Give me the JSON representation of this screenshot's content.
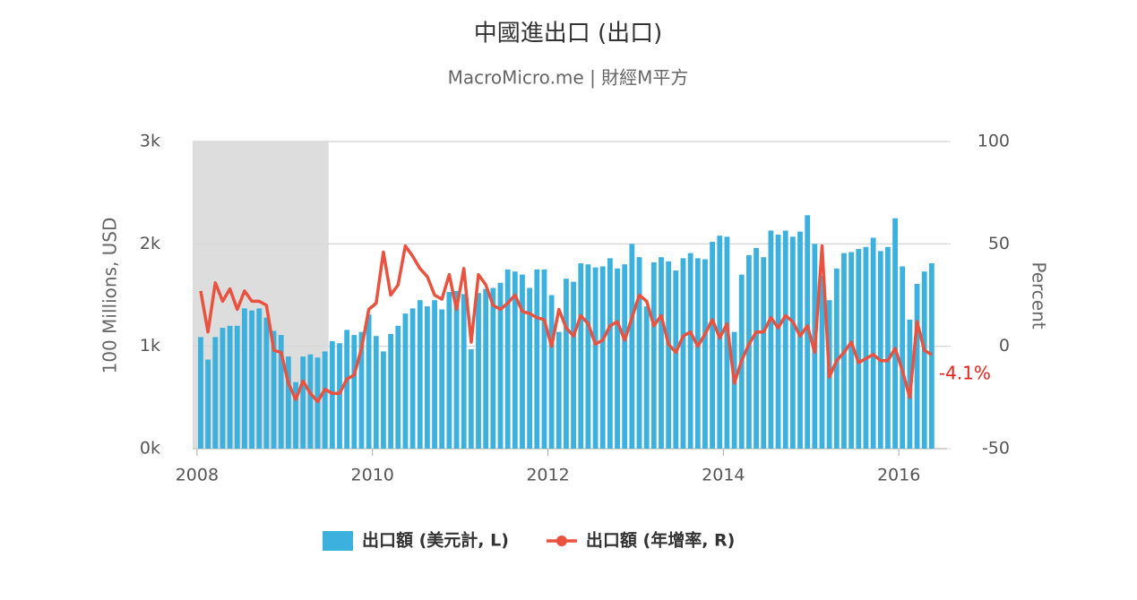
{
  "chart_data": {
    "type": "bar-line",
    "title": "中國進出口 (出口)",
    "subtitle": "MacroMicro.me | 財經M平方",
    "ylabel": "100 Millions, USD",
    "y2label": "Percent",
    "x": [
      "2008-01",
      "2008-02",
      "2008-03",
      "2008-04",
      "2008-05",
      "2008-06",
      "2008-07",
      "2008-08",
      "2008-09",
      "2008-10",
      "2008-11",
      "2008-12",
      "2009-01",
      "2009-02",
      "2009-03",
      "2009-04",
      "2009-05",
      "2009-06",
      "2009-07",
      "2009-08",
      "2009-09",
      "2009-10",
      "2009-11",
      "2009-12",
      "2010-01",
      "2010-02",
      "2010-03",
      "2010-04",
      "2010-05",
      "2010-06",
      "2010-07",
      "2010-08",
      "2010-09",
      "2010-10",
      "2010-11",
      "2010-12",
      "2011-01",
      "2011-02",
      "2011-03",
      "2011-04",
      "2011-05",
      "2011-06",
      "2011-07",
      "2011-08",
      "2011-09",
      "2011-10",
      "2011-11",
      "2011-12",
      "2012-01",
      "2012-02",
      "2012-03",
      "2012-04",
      "2012-05",
      "2012-06",
      "2012-07",
      "2012-08",
      "2012-09",
      "2012-10",
      "2012-11",
      "2012-12",
      "2013-01",
      "2013-02",
      "2013-03",
      "2013-04",
      "2013-05",
      "2013-06",
      "2013-07",
      "2013-08",
      "2013-09",
      "2013-10",
      "2013-11",
      "2013-12",
      "2014-01",
      "2014-02",
      "2014-03",
      "2014-04",
      "2014-05",
      "2014-06",
      "2014-07",
      "2014-08",
      "2014-09",
      "2014-10",
      "2014-11",
      "2014-12",
      "2015-01",
      "2015-02",
      "2015-03",
      "2015-04",
      "2015-05",
      "2015-06",
      "2015-07",
      "2015-08",
      "2015-09",
      "2015-10",
      "2015-11",
      "2015-12",
      "2016-01",
      "2016-02",
      "2016-03",
      "2016-04",
      "2016-05"
    ],
    "series": [
      {
        "name": "出口額 (美元計, L)",
        "color": "#3db1dd",
        "values": [
          1090,
          870,
          1090,
          1180,
          1200,
          1200,
          1370,
          1350,
          1370,
          1280,
          1150,
          1110,
          900,
          650,
          900,
          920,
          890,
          950,
          1050,
          1030,
          1160,
          1110,
          1140,
          1310,
          1100,
          950,
          1120,
          1200,
          1320,
          1370,
          1450,
          1390,
          1450,
          1360,
          1530,
          1540,
          1510,
          970,
          1520,
          1560,
          1570,
          1620,
          1750,
          1730,
          1700,
          1570,
          1750,
          1750,
          1500,
          1140,
          1660,
          1630,
          1810,
          1800,
          1770,
          1780,
          1860,
          1760,
          1800,
          2000,
          1870,
          1390,
          1820,
          1870,
          1830,
          1740,
          1860,
          1910,
          1860,
          1850,
          2020,
          2080,
          2070,
          1140,
          1700,
          1890,
          1960,
          1870,
          2130,
          2090,
          2130,
          2070,
          2120,
          2280,
          2000,
          1690,
          1450,
          1760,
          1910,
          1920,
          1950,
          1970,
          2060,
          1930,
          1970,
          2250,
          1780,
          1260,
          1610,
          1730,
          1810
        ]
      },
      {
        "name": "出口額 (年增率, R)",
        "color": "#e8523f",
        "axis": "y2",
        "values": [
          27,
          7,
          31,
          22,
          28,
          18,
          27,
          22,
          22,
          20,
          -2,
          -3,
          -18,
          -26,
          -17,
          -23,
          -27,
          -21,
          -23,
          -23,
          -16,
          -14,
          -1,
          18,
          21,
          46,
          25,
          30,
          49,
          44,
          38,
          34,
          25,
          23,
          35,
          18,
          38,
          2,
          35,
          30,
          20,
          18,
          21,
          25,
          17,
          16,
          14,
          13,
          0,
          18,
          9,
          5,
          15,
          11,
          1,
          3,
          10,
          12,
          3,
          14,
          25,
          22,
          10,
          15,
          1,
          -3,
          5,
          7,
          0,
          6,
          13,
          4,
          11,
          -18,
          -7,
          1,
          7,
          7,
          14,
          9,
          15,
          12,
          5,
          10,
          -3,
          49,
          -15,
          -7,
          -3,
          2,
          -8,
          -6,
          -4,
          -7,
          -7,
          -1,
          -12,
          -25,
          12,
          -2,
          -4.1
        ]
      }
    ],
    "xlim": [
      2007.95,
      2016.55
    ],
    "xticks": [
      2008,
      2010,
      2012,
      2014,
      2016
    ],
    "ylim": [
      0,
      3000
    ],
    "yticks": [
      {
        "value": 0,
        "label": "0k"
      },
      {
        "value": 1000,
        "label": "1k"
      },
      {
        "value": 2000,
        "label": "2k"
      },
      {
        "value": 3000,
        "label": "3k"
      }
    ],
    "y2lim": [
      -50,
      100
    ],
    "y2ticks": [
      -50,
      0,
      50,
      100
    ],
    "shade": [
      2007.95,
      2009.5
    ],
    "shade_color": "#dddddd",
    "annotations": [
      {
        "text": "-4.1%",
        "x": "2016-05",
        "y": -4.1,
        "color": "#e8201a"
      }
    ],
    "grid": true,
    "legend": "bottom"
  }
}
